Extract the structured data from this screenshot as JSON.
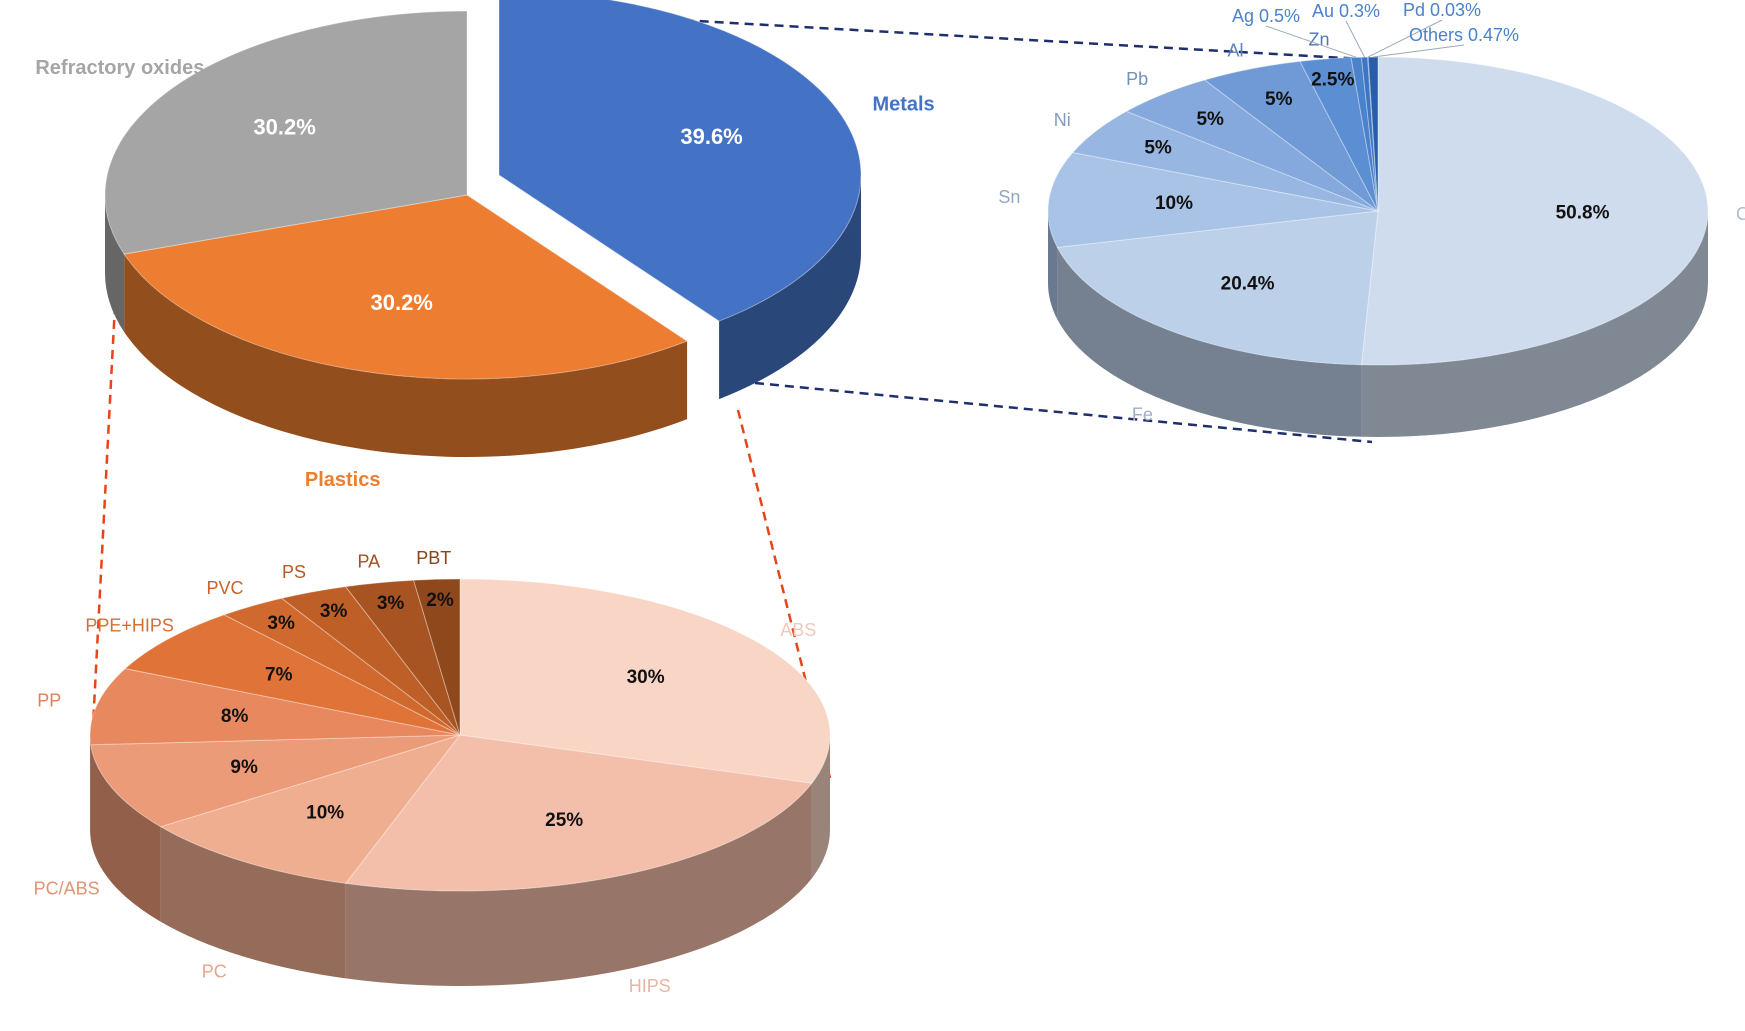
{
  "chart_data": [
    {
      "type": "pie",
      "categories": [
        "Metals",
        "Plastics",
        "Refractory oxides"
      ],
      "values": [
        39.6,
        30.2,
        30.2
      ],
      "value_labels": [
        "39.6%",
        "30.2%",
        "30.2%"
      ],
      "colors": [
        "#4472c4",
        "#ed7d31",
        "#a5a5a5"
      ],
      "value_label_color": "#ffffff"
    },
    {
      "type": "pie",
      "categories": [
        "Cu",
        "Fe",
        "Sn",
        "Ni",
        "Pb",
        "Al",
        "Zn",
        "Ag",
        "Au",
        "Pd",
        "Others"
      ],
      "values": [
        50.8,
        20.4,
        10,
        5,
        5,
        5,
        2.5,
        0.5,
        0.3,
        0.03,
        0.47
      ],
      "value_labels": [
        "50.8%",
        "20.4%",
        "10%",
        "5%",
        "5%",
        "5%",
        "2.5%",
        "0.5%",
        "0.3%",
        "0.03%",
        "0.47%"
      ],
      "colors": [
        "#cfdcee",
        "#bcd0ea",
        "#a9c3e6",
        "#97b6e1",
        "#85a9dc",
        "#6f9ad6",
        "#5b8ed2",
        "#4a82cc",
        "#3d76c4",
        "#2f6ab8",
        "#285ea8"
      ],
      "value_label_color": "#111111"
    },
    {
      "type": "pie",
      "categories": [
        "ABS",
        "HIPS",
        "PC",
        "PC/ABS",
        "PP",
        "PPE+HIPS",
        "PVC",
        "PS",
        "PA",
        "PBT"
      ],
      "values": [
        30,
        25,
        10,
        9,
        8,
        7,
        3,
        3,
        3,
        2
      ],
      "value_labels": [
        "30%",
        "25%",
        "10%",
        "9%",
        "8%",
        "7%",
        "3%",
        "3%",
        "3%",
        "2%"
      ],
      "colors": [
        "#f8d5c5",
        "#f3bfaa",
        "#f0ae91",
        "#ec9b78",
        "#e8885f",
        "#e07438",
        "#d0692e",
        "#bf5f28",
        "#a85422",
        "#8f481c"
      ],
      "value_label_color": "#111111"
    }
  ]
}
